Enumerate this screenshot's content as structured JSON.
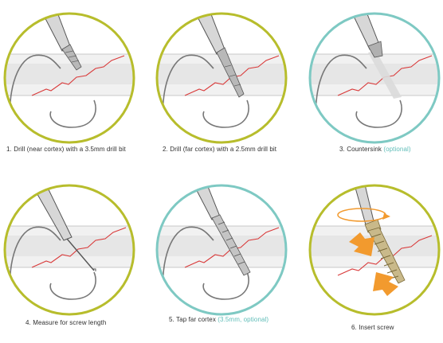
{
  "steps": [
    {
      "id": 1,
      "label": "1. Drill (near cortex) with a 3.5mm drill bit",
      "optional_text": "",
      "ring_color": "#b7bd2c"
    },
    {
      "id": 2,
      "label": "2. Drill (far cortex) with a 2.5mm drill bit",
      "optional_text": "",
      "ring_color": "#b7bd2c"
    },
    {
      "id": 3,
      "label": "3. Countersink ",
      "optional_text": "(optional)",
      "ring_color": "#7ec9c3"
    },
    {
      "id": 4,
      "label": "4. Measure for screw length",
      "optional_text": "",
      "ring_color": "#b7bd2c"
    },
    {
      "id": 5,
      "label": "5. Tap far cortex ",
      "optional_text": "(3.5mm, optional)",
      "ring_color": "#7ec9c3"
    },
    {
      "id": 6,
      "label": "6. Insert screw",
      "optional_text": "",
      "ring_color": "#b7bd2c"
    }
  ],
  "colors": {
    "bone_fill": "#efefef",
    "bone_edge": "#c8c8c8",
    "fracture_line": "#d93a3a",
    "instrument_fill": "#dadada",
    "instrument_edge": "#555555",
    "screw_fill": "#c9b98a",
    "arrow_orange": "#f29a2e",
    "optional_text": "#5fbdb8"
  },
  "icons": [
    "drill-bit-icon",
    "countersink-icon",
    "depth-gauge-icon",
    "tap-icon",
    "screw-icon",
    "rotation-arrow-icon",
    "compression-arrow-icon"
  ]
}
